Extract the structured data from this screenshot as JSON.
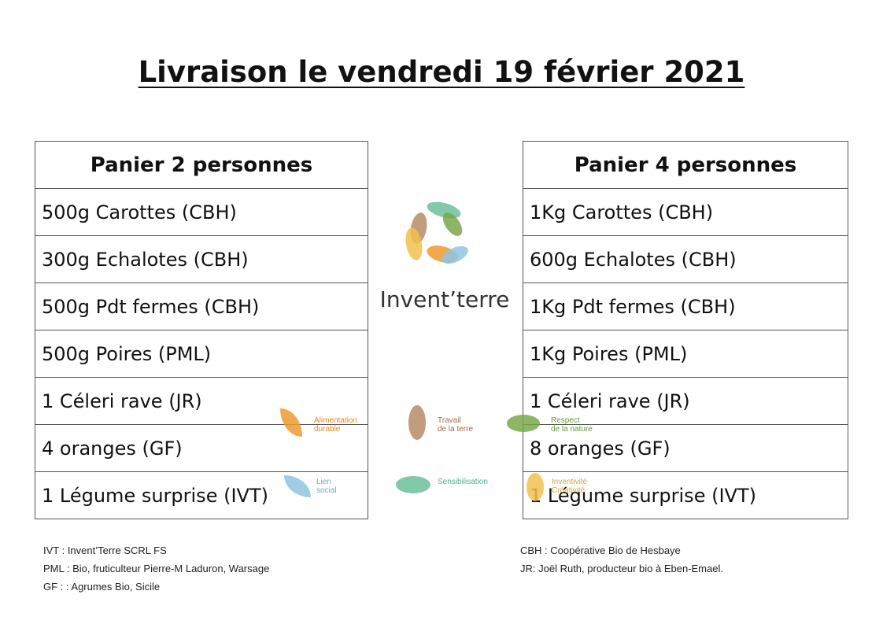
{
  "title": "Livraison le vendredi 19 février 2021",
  "basket_2": {
    "header": "Panier 2 personnes",
    "items": [
      "500g Carottes (CBH)",
      "300g Echalotes (CBH)",
      "500g Pdt fermes (CBH)",
      "500g Poires (PML)",
      "1 Céleri rave (JR)",
      "4 oranges (GF)",
      "1 Légume surprise (IVT)"
    ]
  },
  "basket_4": {
    "header": "Panier 4 personnes",
    "items": [
      "1Kg Carottes (CBH)",
      "600g Echalotes (CBH)",
      "1Kg Pdt fermes (CBH)",
      "1Kg Poires (PML)",
      "1 Céleri rave (JR)",
      "8 oranges (GF)",
      "1 Légume surprise (IVT)"
    ]
  },
  "logo": {
    "name": "Invent’terre"
  },
  "values": {
    "alimentation": "Alimentation\ndurable",
    "travail": "Travail\nde la terre",
    "respect": "Respect\nde la nature",
    "lien": "Lien\nsocial",
    "sensibilisation": "Sensibilisation",
    "inventivite": "Inventivité\nCréativité"
  },
  "colors": {
    "orange": "#ef9a2e",
    "brown": "#b98a68",
    "green": "#7aa84a",
    "teal": "#6cbf9a",
    "blue": "#8ec4e0",
    "yellow": "#f2c14e"
  },
  "legend_left": [
    "IVT : Invent’Terre SCRL FS",
    "PML : Bio, fruticulteur Pierre-M Laduron, Warsage",
    "GF : : Agrumes Bio, Sicile"
  ],
  "legend_right": [
    "CBH : Coopérative Bio de Hesbaye",
    "JR: Joël Ruth, producteur bio à Eben-Emael."
  ]
}
